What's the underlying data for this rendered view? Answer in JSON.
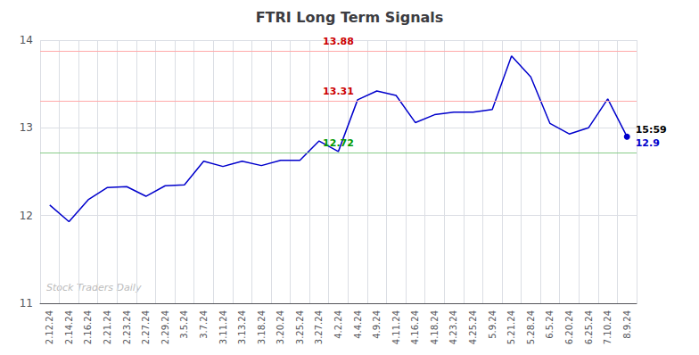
{
  "chart_data": {
    "type": "line",
    "title": "FTRI Long Term Signals",
    "categories": [
      "2.12.24",
      "2.14.24",
      "2.16.24",
      "2.21.24",
      "2.23.24",
      "2.27.24",
      "2.29.24",
      "3.5.24",
      "3.7.24",
      "3.11.24",
      "3.13.24",
      "3.18.24",
      "3.20.24",
      "3.25.24",
      "3.27.24",
      "4.2.24",
      "4.4.24",
      "4.9.24",
      "4.11.24",
      "4.16.24",
      "4.18.24",
      "4.23.24",
      "4.25.24",
      "5.9.24",
      "5.21.24",
      "5.28.24",
      "6.5.24",
      "6.20.24",
      "6.25.24",
      "7.10.24",
      "8.9.24"
    ],
    "values": [
      12.12,
      11.93,
      12.18,
      12.32,
      12.33,
      12.22,
      12.34,
      12.35,
      12.62,
      12.56,
      12.62,
      12.57,
      12.63,
      12.63,
      12.85,
      12.73,
      13.32,
      13.42,
      13.37,
      13.06,
      13.15,
      13.18,
      13.18,
      13.21,
      13.82,
      13.58,
      13.05,
      12.93,
      13.0,
      13.33,
      12.9
    ],
    "color": "#0000cc",
    "ylim": [
      11,
      14
    ],
    "yticks": [
      11,
      12,
      13,
      14
    ],
    "grid": true,
    "reference_lines": [
      {
        "value": 13.88,
        "label": "13.88",
        "color": "#ffaaaa",
        "label_color": "#cc0000"
      },
      {
        "value": 13.31,
        "label": "13.31",
        "color": "#ffaaaa",
        "label_color": "#cc0000"
      },
      {
        "value": 12.72,
        "label": "12.72",
        "color": "#88cc88",
        "label_color": "#009900"
      }
    ],
    "end_label": {
      "time": "15:59",
      "value": "12.9"
    },
    "watermark": "Stock Traders Daily"
  }
}
